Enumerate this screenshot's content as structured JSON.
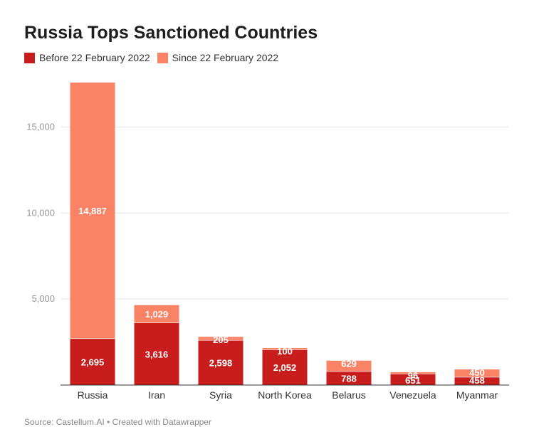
{
  "title": "Russia Tops Sanctioned Countries",
  "legend": [
    {
      "label": "Before 22 February 2022",
      "color": "#c71e1d"
    },
    {
      "label": "Since 22 February 2022",
      "color": "#fa8366"
    }
  ],
  "source": "Source: Castellum.AI • Created with Datawrapper",
  "chart_data": {
    "type": "bar",
    "stacked": true,
    "title": "Russia Tops Sanctioned Countries",
    "categories": [
      "Russia",
      "Iran",
      "Syria",
      "North Korea",
      "Belarus",
      "Venezuela",
      "Myanmar"
    ],
    "series": [
      {
        "name": "Before 22 February 2022",
        "color": "#c71e1d",
        "values": [
          2695,
          3616,
          2598,
          2052,
          788,
          651,
          458
        ]
      },
      {
        "name": "Since 22 February 2022",
        "color": "#fa8366",
        "values": [
          14887,
          1029,
          205,
          100,
          629,
          96,
          450
        ]
      }
    ],
    "ylim": [
      0,
      17582
    ],
    "yticks": [
      5000,
      10000,
      15000
    ],
    "ytick_labels": [
      "5,000",
      "10,000",
      "15,000"
    ],
    "grid": true,
    "legend_position": "top-left"
  }
}
